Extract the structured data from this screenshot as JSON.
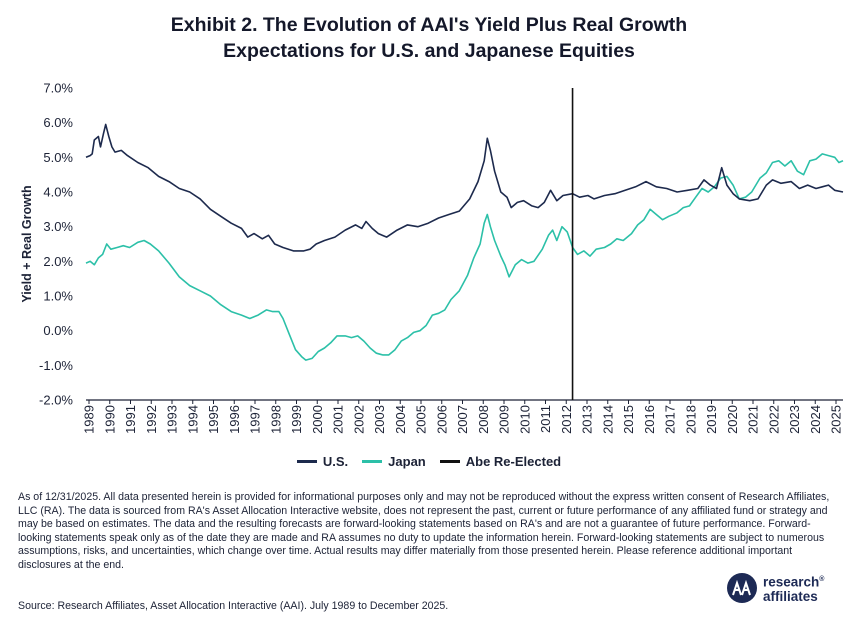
{
  "title_line1": "Exhibit 2. The Evolution of AAI's Yield Plus Real Growth",
  "title_line2": "Expectations for U.S. and Japanese Equities",
  "legend": {
    "us": "U.S.",
    "japan": "Japan",
    "abe": "Abe Re-Elected"
  },
  "colors": {
    "us": "#1d2a4d",
    "japan": "#2cc0a8",
    "abe": "#111111",
    "axis": "#1c2236"
  },
  "footnote": "As of 12/31/2025. All data presented herein is provided for informational purposes only and may not be reproduced without the express written consent of Research Affiliates, LLC (RA). The data is sourced from RA's Asset Allocation Interactive website, does not represent the past, current or future performance of any affiliated fund or strategy and may be based on estimates. The data and the resulting forecasts are forward-looking statements based on RA's and are not a guarantee of future performance. Forward-looking statements speak only as of the date they are made and RA assumes no duty to update the information herein. Forward-looking statements are subject to numerous assumptions, risks, and uncertainties, which change over time. Actual results may differ materially from those presented herein. Please reference additional important disclosures at the end.",
  "source": "Source: Research Affiliates, Asset Allocation Interactive (AAI). July 1989 to December 2025.",
  "logo": {
    "line1": "research",
    "trademark": "®",
    "line2": "affiliates"
  },
  "chart_data": {
    "type": "line",
    "ylabel": "Yield + Real Growth",
    "xlabel": "",
    "y_ticks": [
      "7.0%",
      "6.0%",
      "5.0%",
      "4.0%",
      "3.0%",
      "2.0%",
      "1.0%",
      "0.0%",
      "-1.0%",
      "-2.0%"
    ],
    "ylim": [
      -2.0,
      7.0
    ],
    "x_ticks": [
      "1989",
      "1990",
      "1991",
      "1992",
      "1993",
      "1994",
      "1995",
      "1996",
      "1997",
      "1998",
      "1999",
      "2000",
      "2001",
      "2002",
      "2003",
      "2004",
      "2005",
      "2006",
      "2007",
      "2008",
      "2009",
      "2010",
      "2011",
      "2012",
      "2013",
      "2014",
      "2015",
      "2016",
      "2017",
      "2018",
      "2019",
      "2020",
      "2021",
      "2022",
      "2023",
      "2024",
      "2025"
    ],
    "xlim": [
      1989.5,
      2026.0
    ],
    "vertical_marker": {
      "name": "Abe Re-Elected",
      "x": 2012.96
    },
    "series": [
      {
        "name": "U.S.",
        "color": "#1d2a4d",
        "points": [
          [
            1989.5,
            5.0
          ],
          [
            1989.7,
            5.05
          ],
          [
            1989.8,
            5.1
          ],
          [
            1989.9,
            5.5
          ],
          [
            1990.1,
            5.6
          ],
          [
            1990.2,
            5.3
          ],
          [
            1990.35,
            5.7
          ],
          [
            1990.45,
            5.95
          ],
          [
            1990.6,
            5.6
          ],
          [
            1990.75,
            5.3
          ],
          [
            1990.9,
            5.15
          ],
          [
            1991.2,
            5.2
          ],
          [
            1991.5,
            5.05
          ],
          [
            1992.0,
            4.85
          ],
          [
            1992.5,
            4.7
          ],
          [
            1993.0,
            4.45
          ],
          [
            1993.5,
            4.3
          ],
          [
            1994.0,
            4.1
          ],
          [
            1994.5,
            4.0
          ],
          [
            1995.0,
            3.8
          ],
          [
            1995.5,
            3.5
          ],
          [
            1996.0,
            3.3
          ],
          [
            1996.5,
            3.1
          ],
          [
            1997.0,
            2.95
          ],
          [
            1997.3,
            2.7
          ],
          [
            1997.6,
            2.8
          ],
          [
            1998.0,
            2.65
          ],
          [
            1998.3,
            2.75
          ],
          [
            1998.6,
            2.5
          ],
          [
            1999.0,
            2.4
          ],
          [
            1999.5,
            2.3
          ],
          [
            2000.0,
            2.3
          ],
          [
            2000.3,
            2.35
          ],
          [
            2000.6,
            2.5
          ],
          [
            2001.0,
            2.6
          ],
          [
            2001.5,
            2.7
          ],
          [
            2002.0,
            2.9
          ],
          [
            2002.5,
            3.05
          ],
          [
            2002.8,
            2.95
          ],
          [
            2003.0,
            3.15
          ],
          [
            2003.3,
            2.95
          ],
          [
            2003.6,
            2.8
          ],
          [
            2004.0,
            2.7
          ],
          [
            2004.5,
            2.9
          ],
          [
            2005.0,
            3.05
          ],
          [
            2005.5,
            3.0
          ],
          [
            2006.0,
            3.1
          ],
          [
            2006.5,
            3.25
          ],
          [
            2007.0,
            3.35
          ],
          [
            2007.5,
            3.45
          ],
          [
            2008.0,
            3.8
          ],
          [
            2008.4,
            4.3
          ],
          [
            2008.7,
            4.9
          ],
          [
            2008.85,
            5.55
          ],
          [
            2009.0,
            5.2
          ],
          [
            2009.2,
            4.6
          ],
          [
            2009.5,
            4.0
          ],
          [
            2009.8,
            3.85
          ],
          [
            2010.0,
            3.55
          ],
          [
            2010.3,
            3.7
          ],
          [
            2010.6,
            3.75
          ],
          [
            2011.0,
            3.6
          ],
          [
            2011.3,
            3.55
          ],
          [
            2011.6,
            3.7
          ],
          [
            2011.9,
            4.05
          ],
          [
            2012.2,
            3.75
          ],
          [
            2012.5,
            3.9
          ],
          [
            2012.96,
            3.95
          ],
          [
            2013.3,
            3.85
          ],
          [
            2013.7,
            3.9
          ],
          [
            2014.0,
            3.8
          ],
          [
            2014.5,
            3.9
          ],
          [
            2015.0,
            3.95
          ],
          [
            2015.5,
            4.05
          ],
          [
            2016.0,
            4.15
          ],
          [
            2016.5,
            4.3
          ],
          [
            2017.0,
            4.15
          ],
          [
            2017.5,
            4.1
          ],
          [
            2018.0,
            4.0
          ],
          [
            2018.5,
            4.05
          ],
          [
            2019.0,
            4.1
          ],
          [
            2019.3,
            4.35
          ],
          [
            2019.6,
            4.2
          ],
          [
            2019.9,
            4.1
          ],
          [
            2020.15,
            4.7
          ],
          [
            2020.4,
            4.2
          ],
          [
            2020.7,
            3.95
          ],
          [
            2021.0,
            3.8
          ],
          [
            2021.5,
            3.75
          ],
          [
            2021.9,
            3.8
          ],
          [
            2022.3,
            4.2
          ],
          [
            2022.6,
            4.35
          ],
          [
            2023.0,
            4.25
          ],
          [
            2023.5,
            4.3
          ],
          [
            2023.9,
            4.1
          ],
          [
            2024.3,
            4.2
          ],
          [
            2024.7,
            4.1
          ],
          [
            2025.0,
            4.15
          ],
          [
            2025.3,
            4.2
          ],
          [
            2025.6,
            4.05
          ],
          [
            2026.0,
            4.0
          ]
        ]
      },
      {
        "name": "Japan",
        "color": "#2cc0a8",
        "points": [
          [
            1989.5,
            1.95
          ],
          [
            1989.7,
            2.0
          ],
          [
            1989.9,
            1.9
          ],
          [
            1990.1,
            2.1
          ],
          [
            1990.3,
            2.2
          ],
          [
            1990.5,
            2.5
          ],
          [
            1990.7,
            2.35
          ],
          [
            1991.0,
            2.4
          ],
          [
            1991.3,
            2.45
          ],
          [
            1991.6,
            2.4
          ],
          [
            1992.0,
            2.55
          ],
          [
            1992.3,
            2.6
          ],
          [
            1992.6,
            2.5
          ],
          [
            1993.0,
            2.3
          ],
          [
            1993.5,
            1.95
          ],
          [
            1994.0,
            1.55
          ],
          [
            1994.5,
            1.3
          ],
          [
            1995.0,
            1.15
          ],
          [
            1995.5,
            1.0
          ],
          [
            1996.0,
            0.75
          ],
          [
            1996.5,
            0.55
          ],
          [
            1997.0,
            0.45
          ],
          [
            1997.4,
            0.35
          ],
          [
            1997.8,
            0.45
          ],
          [
            1998.2,
            0.6
          ],
          [
            1998.5,
            0.55
          ],
          [
            1998.8,
            0.55
          ],
          [
            1999.0,
            0.35
          ],
          [
            1999.3,
            -0.1
          ],
          [
            1999.6,
            -0.55
          ],
          [
            1999.9,
            -0.75
          ],
          [
            2000.1,
            -0.85
          ],
          [
            2000.4,
            -0.8
          ],
          [
            2000.7,
            -0.6
          ],
          [
            2001.0,
            -0.5
          ],
          [
            2001.3,
            -0.35
          ],
          [
            2001.6,
            -0.15
          ],
          [
            2002.0,
            -0.15
          ],
          [
            2002.3,
            -0.2
          ],
          [
            2002.6,
            -0.15
          ],
          [
            2002.9,
            -0.3
          ],
          [
            2003.2,
            -0.5
          ],
          [
            2003.5,
            -0.65
          ],
          [
            2003.8,
            -0.7
          ],
          [
            2004.1,
            -0.7
          ],
          [
            2004.4,
            -0.55
          ],
          [
            2004.7,
            -0.3
          ],
          [
            2005.0,
            -0.2
          ],
          [
            2005.3,
            -0.05
          ],
          [
            2005.6,
            0.0
          ],
          [
            2005.9,
            0.15
          ],
          [
            2006.2,
            0.45
          ],
          [
            2006.5,
            0.5
          ],
          [
            2006.8,
            0.6
          ],
          [
            2007.1,
            0.9
          ],
          [
            2007.5,
            1.15
          ],
          [
            2007.9,
            1.6
          ],
          [
            2008.2,
            2.1
          ],
          [
            2008.5,
            2.5
          ],
          [
            2008.7,
            3.1
          ],
          [
            2008.85,
            3.35
          ],
          [
            2009.0,
            3.0
          ],
          [
            2009.2,
            2.6
          ],
          [
            2009.5,
            2.15
          ],
          [
            2009.7,
            1.9
          ],
          [
            2009.9,
            1.55
          ],
          [
            2010.2,
            1.9
          ],
          [
            2010.5,
            2.05
          ],
          [
            2010.8,
            1.95
          ],
          [
            2011.1,
            2.0
          ],
          [
            2011.5,
            2.35
          ],
          [
            2011.8,
            2.75
          ],
          [
            2012.0,
            2.9
          ],
          [
            2012.2,
            2.6
          ],
          [
            2012.45,
            3.0
          ],
          [
            2012.7,
            2.85
          ],
          [
            2012.96,
            2.4
          ],
          [
            2013.2,
            2.2
          ],
          [
            2013.5,
            2.3
          ],
          [
            2013.8,
            2.15
          ],
          [
            2014.1,
            2.35
          ],
          [
            2014.5,
            2.4
          ],
          [
            2014.8,
            2.5
          ],
          [
            2015.1,
            2.65
          ],
          [
            2015.4,
            2.6
          ],
          [
            2015.8,
            2.8
          ],
          [
            2016.1,
            3.05
          ],
          [
            2016.4,
            3.2
          ],
          [
            2016.7,
            3.5
          ],
          [
            2017.0,
            3.35
          ],
          [
            2017.3,
            3.2
          ],
          [
            2017.6,
            3.3
          ],
          [
            2018.0,
            3.4
          ],
          [
            2018.3,
            3.55
          ],
          [
            2018.6,
            3.6
          ],
          [
            2018.9,
            3.85
          ],
          [
            2019.2,
            4.1
          ],
          [
            2019.5,
            4.0
          ],
          [
            2019.8,
            4.15
          ],
          [
            2020.1,
            4.4
          ],
          [
            2020.4,
            4.45
          ],
          [
            2020.7,
            4.2
          ],
          [
            2021.0,
            3.8
          ],
          [
            2021.3,
            3.85
          ],
          [
            2021.6,
            4.0
          ],
          [
            2022.0,
            4.4
          ],
          [
            2022.3,
            4.55
          ],
          [
            2022.6,
            4.85
          ],
          [
            2022.9,
            4.9
          ],
          [
            2023.2,
            4.75
          ],
          [
            2023.5,
            4.9
          ],
          [
            2023.8,
            4.6
          ],
          [
            2024.1,
            4.5
          ],
          [
            2024.4,
            4.9
          ],
          [
            2024.7,
            4.95
          ],
          [
            2025.0,
            5.1
          ],
          [
            2025.3,
            5.05
          ],
          [
            2025.6,
            5.0
          ],
          [
            2025.8,
            4.85
          ],
          [
            2026.0,
            4.9
          ]
        ]
      }
    ]
  }
}
